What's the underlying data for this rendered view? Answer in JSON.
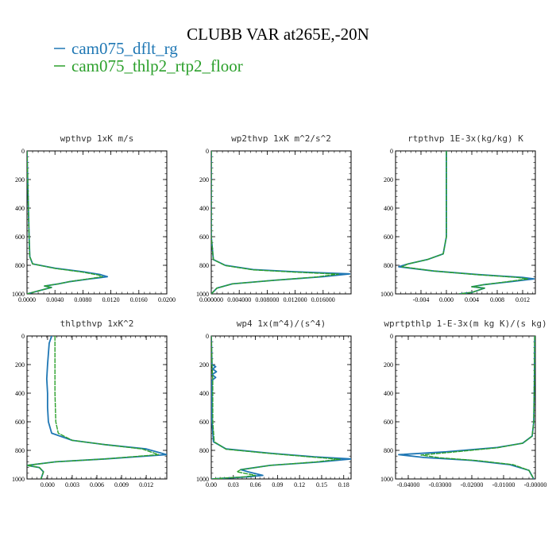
{
  "title": "CLUBB VAR at265E,-20N",
  "legend": [
    {
      "label": "cam075_dflt_rg",
      "color": "#1f77b4"
    },
    {
      "label": "cam075_thlp2_rtp2_floor",
      "color": "#2ca02c"
    }
  ],
  "chart_data": [
    {
      "type": "line",
      "title": "wpthvp  1xK m/s",
      "xlim": [
        0,
        0.02
      ],
      "ylim": [
        1000,
        0
      ],
      "x_ticks": [
        "0.0000",
        "0.0040",
        "0.0080",
        "0.0120",
        "0.0160",
        "0.0200"
      ],
      "y_ticks": [
        "0",
        "200",
        "400",
        "600",
        "800",
        "1000"
      ],
      "series": [
        {
          "name": "cam075_dflt_rg",
          "color": "#1f77b4",
          "points": [
            [
              0,
              0
            ],
            [
              0.0001,
              200
            ],
            [
              0.0002,
              400
            ],
            [
              0.0003,
              600
            ],
            [
              0.0004,
              740
            ],
            [
              0.0008,
              790
            ],
            [
              0.004,
              820
            ],
            [
              0.008,
              845
            ],
            [
              0.0105,
              865
            ],
            [
              0.0115,
              880
            ],
            [
              0.009,
              895
            ],
            [
              0.006,
              915
            ],
            [
              0.0045,
              930
            ],
            [
              0.0025,
              945
            ],
            [
              0.0035,
              955
            ],
            [
              0.0,
              1000
            ]
          ]
        },
        {
          "name": "cam075_thlp2_rtp2_floor",
          "color": "#2ca02c",
          "points": [
            [
              0,
              0
            ],
            [
              0.0001,
              200
            ],
            [
              0.0002,
              400
            ],
            [
              0.0003,
              600
            ],
            [
              0.0004,
              740
            ],
            [
              0.0008,
              790
            ],
            [
              0.004,
              822
            ],
            [
              0.008,
              848
            ],
            [
              0.0102,
              868
            ],
            [
              0.0108,
              880
            ],
            [
              0.0085,
              897
            ],
            [
              0.006,
              915
            ],
            [
              0.0045,
              930
            ],
            [
              0.0025,
              945
            ],
            [
              0.0035,
              955
            ],
            [
              0.0,
              1000
            ]
          ]
        }
      ]
    },
    {
      "type": "line",
      "title": "wp2thvp  1xK m^2/s^2",
      "xlim": [
        0,
        0.02
      ],
      "ylim": [
        1000,
        0
      ],
      "x_ticks": [
        "0.000000",
        "0.004000",
        "0.008000",
        "0.012000",
        "0.016000"
      ],
      "y_ticks": [
        "0",
        "200",
        "400",
        "600",
        "800",
        "1000"
      ],
      "series": [
        {
          "name": "cam075_dflt_rg",
          "color": "#1f77b4",
          "points": [
            [
              0,
              0
            ],
            [
              0,
              600
            ],
            [
              0.0003,
              760
            ],
            [
              0.002,
              800
            ],
            [
              0.006,
              830
            ],
            [
              0.012,
              845
            ],
            [
              0.0198,
              860
            ],
            [
              0.016,
              880
            ],
            [
              0.009,
              905
            ],
            [
              0.003,
              930
            ],
            [
              0.0008,
              960
            ],
            [
              0.0,
              1000
            ]
          ]
        },
        {
          "name": "cam075_thlp2_rtp2_floor",
          "color": "#2ca02c",
          "points": [
            [
              0,
              0
            ],
            [
              0,
              600
            ],
            [
              0.0003,
              760
            ],
            [
              0.002,
              802
            ],
            [
              0.006,
              832
            ],
            [
              0.012,
              848
            ],
            [
              0.0182,
              862
            ],
            [
              0.015,
              882
            ],
            [
              0.009,
              905
            ],
            [
              0.003,
              930
            ],
            [
              0.0008,
              960
            ],
            [
              0.0,
              1000
            ]
          ]
        }
      ]
    },
    {
      "type": "line",
      "title": "rtpthvp  1E-3x(kg/kg) K",
      "xlim": [
        -0.008,
        0.014
      ],
      "ylim": [
        1000,
        0
      ],
      "x_ticks": [
        "-0.004",
        "0.000",
        "0.004",
        "0.008",
        "0.012"
      ],
      "y_ticks": [
        "0",
        "200",
        "400",
        "600",
        "800",
        "1000"
      ],
      "series": [
        {
          "name": "cam075_dflt_rg",
          "color": "#1f77b4",
          "points": [
            [
              0,
              0
            ],
            [
              0,
              300
            ],
            [
              0,
              600
            ],
            [
              -0.0005,
              720
            ],
            [
              -0.003,
              760
            ],
            [
              -0.006,
              790
            ],
            [
              -0.0075,
              810
            ],
            [
              -0.002,
              840
            ],
            [
              0.005,
              865
            ],
            [
              0.012,
              885
            ],
            [
              0.0138,
              895
            ],
            [
              0.01,
              915
            ],
            [
              0.006,
              935
            ],
            [
              0.004,
              950
            ],
            [
              0.006,
              960
            ],
            [
              0.004,
              990
            ],
            [
              0.002,
              1000
            ]
          ]
        },
        {
          "name": "cam075_thlp2_rtp2_floor",
          "color": "#2ca02c",
          "points": [
            [
              0,
              0
            ],
            [
              0,
              300
            ],
            [
              0,
              600
            ],
            [
              -0.0005,
              720
            ],
            [
              -0.003,
              760
            ],
            [
              -0.006,
              790
            ],
            [
              -0.007,
              810
            ],
            [
              -0.002,
              840
            ],
            [
              0.005,
              866
            ],
            [
              0.0112,
              885
            ],
            [
              0.0128,
              895
            ],
            [
              0.0095,
              915
            ],
            [
              0.006,
              935
            ],
            [
              0.004,
              950
            ],
            [
              0.006,
              960
            ],
            [
              0.004,
              990
            ],
            [
              0.002,
              1000
            ]
          ]
        }
      ]
    },
    {
      "type": "line",
      "title": "thlpthvp  1xK^2",
      "xlim": [
        -0.0025,
        0.0145
      ],
      "ylim": [
        1000,
        0
      ],
      "x_ticks": [
        "0.000",
        "0.003",
        "0.006",
        "0.009",
        "0.012"
      ],
      "y_ticks": [
        "0",
        "200",
        "400",
        "600",
        "800",
        "1000"
      ],
      "series": [
        {
          "name": "cam075_dflt_rg",
          "color": "#1f77b4",
          "points": [
            [
              0.0005,
              0
            ],
            [
              0.0002,
              50
            ],
            [
              0,
              200
            ],
            [
              -0.0001,
              300
            ],
            [
              0,
              400
            ],
            [
              0,
              500
            ],
            [
              0.0001,
              600
            ],
            [
              0.0005,
              680
            ],
            [
              0.003,
              730
            ],
            [
              0.007,
              760
            ],
            [
              0.012,
              790
            ],
            [
              0.0145,
              830
            ],
            [
              0.007,
              860
            ],
            [
              0.001,
              880
            ],
            [
              -0.0025,
              905
            ],
            [
              -0.001,
              920
            ],
            [
              -0.0005,
              950
            ],
            [
              -0.0008,
              1000
            ]
          ]
        },
        {
          "name": "cam075_thlp2_rtp2_floor",
          "color": "#2ca02c",
          "points": [
            [
              0.0009,
              0
            ],
            [
              0.0009,
              200
            ],
            [
              0.0009,
              400
            ],
            [
              0.001,
              600
            ],
            [
              0.0013,
              680
            ],
            [
              0.003,
              730
            ],
            [
              0.007,
              760
            ],
            [
              0.0115,
              790
            ],
            [
              0.0135,
              830
            ],
            [
              0.007,
              860
            ],
            [
              0.001,
              880
            ],
            [
              -0.0025,
              905
            ],
            [
              -0.001,
              920
            ],
            [
              -0.0005,
              950
            ],
            [
              -0.0008,
              1000
            ]
          ]
        }
      ]
    },
    {
      "type": "line",
      "title": "wp4  1x(m^4)/(s^4)",
      "xlim": [
        0,
        0.19
      ],
      "ylim": [
        1000,
        0
      ],
      "x_ticks": [
        "0.00",
        "0.03",
        "0.06",
        "0.09",
        "0.12",
        "0.15",
        "0.18"
      ],
      "y_ticks": [
        "0",
        "200",
        "400",
        "600",
        "800",
        "1000"
      ],
      "series": [
        {
          "name": "cam075_dflt_rg",
          "color": "#1f77b4",
          "points": [
            [
              0,
              0
            ],
            [
              0.001,
              200
            ],
            [
              0.006,
              215
            ],
            [
              0.002,
              230
            ],
            [
              0.007,
              250
            ],
            [
              0.001,
              270
            ],
            [
              0.006,
              290
            ],
            [
              0.001,
              310
            ],
            [
              0.001,
              600
            ],
            [
              0.003,
              740
            ],
            [
              0.02,
              790
            ],
            [
              0.08,
              820
            ],
            [
              0.14,
              845
            ],
            [
              0.19,
              860
            ],
            [
              0.15,
              880
            ],
            [
              0.08,
              905
            ],
            [
              0.04,
              935
            ],
            [
              0.05,
              950
            ],
            [
              0.07,
              975
            ],
            [
              0.05,
              985
            ],
            [
              0.0,
              1000
            ]
          ]
        },
        {
          "name": "cam075_thlp2_rtp2_floor",
          "color": "#2ca02c",
          "points": [
            [
              0,
              0
            ],
            [
              0.001,
              200
            ],
            [
              0.002,
              300
            ],
            [
              0.002,
              600
            ],
            [
              0.004,
              740
            ],
            [
              0.02,
              792
            ],
            [
              0.08,
              822
            ],
            [
              0.14,
              848
            ],
            [
              0.175,
              862
            ],
            [
              0.14,
              882
            ],
            [
              0.08,
              905
            ],
            [
              0.04,
              935
            ],
            [
              0.035,
              950
            ],
            [
              0.06,
              975
            ],
            [
              0.045,
              985
            ],
            [
              0.0,
              1000
            ]
          ]
        }
      ]
    },
    {
      "type": "line",
      "title": "wprtpthlp  1-E-3x(m kg K)/(s kg)",
      "xlim": [
        -0.044,
        0.0
      ],
      "ylim": [
        1000,
        0
      ],
      "x_ticks": [
        "-0.04000",
        "-0.03000",
        "-0.02000",
        "-0.01000",
        "-0.00000"
      ],
      "y_ticks": [
        "0",
        "200",
        "400",
        "600",
        "800",
        "1000"
      ],
      "series": [
        {
          "name": "cam075_dflt_rg",
          "color": "#1f77b4",
          "points": [
            [
              -0.0002,
              0
            ],
            [
              -0.0003,
              300
            ],
            [
              -0.0005,
              600
            ],
            [
              -0.001,
              700
            ],
            [
              -0.004,
              750
            ],
            [
              -0.012,
              780
            ],
            [
              -0.028,
              810
            ],
            [
              -0.043,
              830
            ],
            [
              -0.035,
              850
            ],
            [
              -0.02,
              870
            ],
            [
              -0.008,
              900
            ],
            [
              -0.002,
              940
            ],
            [
              -0.0005,
              1000
            ]
          ]
        },
        {
          "name": "cam075_thlp2_rtp2_floor",
          "color": "#2ca02c",
          "points": [
            [
              -0.0002,
              0
            ],
            [
              -0.0003,
              300
            ],
            [
              -0.0005,
              600
            ],
            [
              -0.001,
              700
            ],
            [
              -0.004,
              750
            ],
            [
              -0.012,
              782
            ],
            [
              -0.026,
              812
            ],
            [
              -0.036,
              833
            ],
            [
              -0.03,
              852
            ],
            [
              -0.018,
              872
            ],
            [
              -0.007,
              900
            ],
            [
              -0.002,
              940
            ],
            [
              -0.0005,
              1000
            ]
          ]
        }
      ]
    }
  ]
}
